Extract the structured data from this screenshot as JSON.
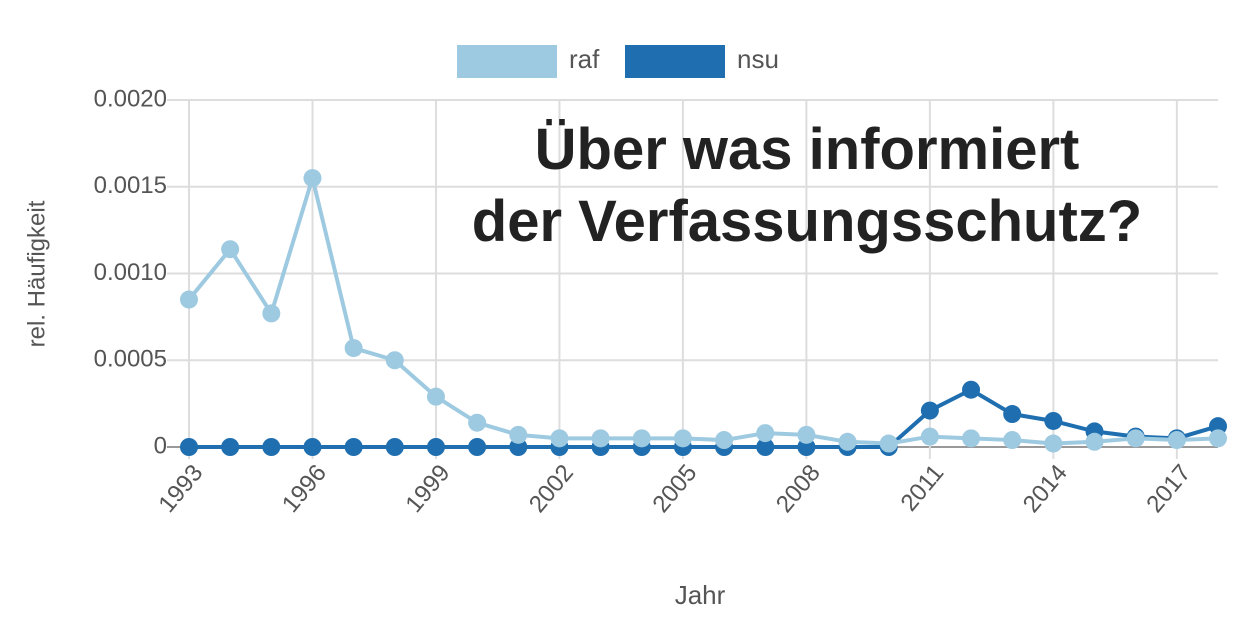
{
  "chart_data": {
    "type": "line",
    "title": "Über was informiert der Verfassungsschutz?",
    "x_label": "Jahr",
    "y_label": "rel. Häufigkeit",
    "x": [
      1993,
      1994,
      1995,
      1996,
      1997,
      1998,
      1999,
      2000,
      2001,
      2002,
      2003,
      2004,
      2005,
      2006,
      2007,
      2008,
      2009,
      2010,
      2011,
      2012,
      2013,
      2014,
      2015,
      2016,
      2017,
      2018
    ],
    "series": [
      {
        "name": "raf",
        "color": "#9ecae1",
        "values": [
          0.00085,
          0.00114,
          0.00077,
          0.00155,
          0.00057,
          0.0005,
          0.00029,
          0.00014,
          7e-05,
          5e-05,
          5e-05,
          5e-05,
          5e-05,
          4e-05,
          8e-05,
          7e-05,
          3e-05,
          2e-05,
          6e-05,
          5e-05,
          4e-05,
          2e-05,
          3e-05,
          5e-05,
          4e-05,
          5e-05
        ]
      },
      {
        "name": "nsu",
        "color": "#1f6fb0",
        "values": [
          0,
          0,
          0,
          0,
          0,
          0,
          0,
          0,
          0,
          0,
          0,
          0,
          0,
          0,
          0,
          0,
          0,
          0,
          0.00021,
          0.00033,
          0.00019,
          0.00015,
          9e-05,
          6e-05,
          5e-05,
          0.00012
        ]
      }
    ],
    "xlim": [
      1993,
      2018
    ],
    "xticks": [
      1993,
      1996,
      1999,
      2002,
      2005,
      2008,
      2011,
      2014,
      2017
    ],
    "ylim": [
      0,
      0.002
    ],
    "yticks": [
      0,
      0.0005,
      {
        "value": 0.001,
        "label": "0.0010"
      },
      0.0015,
      {
        "value": 0.002,
        "label": "0.0020"
      }
    ],
    "grid": true,
    "legend": "top"
  }
}
